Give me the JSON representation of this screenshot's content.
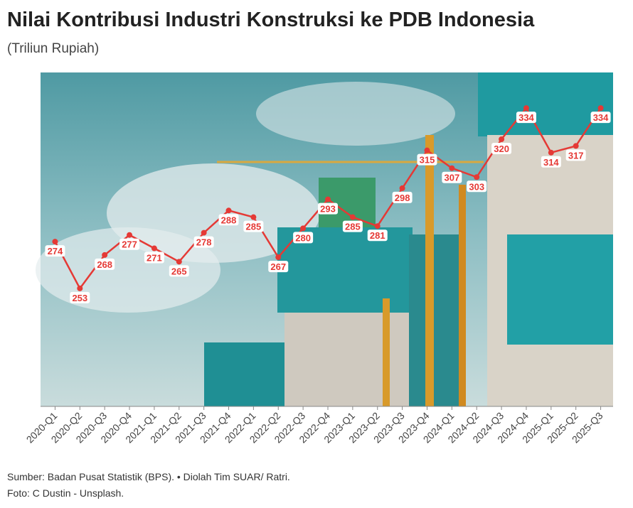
{
  "title": "Nilai Kontribusi Industri Konstruksi ke PDB Indonesia",
  "subtitle": "(Triliun Rupiah)",
  "source": "Sumber: Badan Pusat Statistik (BPS). • Diolah Tim SUAR/ Ratri.",
  "photo_credit": "Foto: C Dustin - Unsplash.",
  "chart_data": {
    "type": "line",
    "categories": [
      "2020-Q1",
      "2020-Q2",
      "2020-Q3",
      "2020-Q4",
      "2021-Q1",
      "2021-Q2",
      "2021-Q3",
      "2021-Q4",
      "2022-Q1",
      "2022-Q2",
      "2022-Q3",
      "2022-Q4",
      "2023-Q1",
      "2023-Q2",
      "2023-Q3",
      "2023-Q4",
      "2024-Q1",
      "2024-Q2",
      "2024-Q3",
      "2024-Q4",
      "2025-Q1",
      "2025-Q2",
      "2025-Q3"
    ],
    "values": [
      274,
      253,
      268,
      277,
      271,
      265,
      278,
      288,
      285,
      267,
      280,
      293,
      285,
      281,
      298,
      315,
      307,
      303,
      320,
      334,
      314,
      317,
      334
    ],
    "color": "#e53935",
    "ylim": [
      200,
      350
    ]
  }
}
